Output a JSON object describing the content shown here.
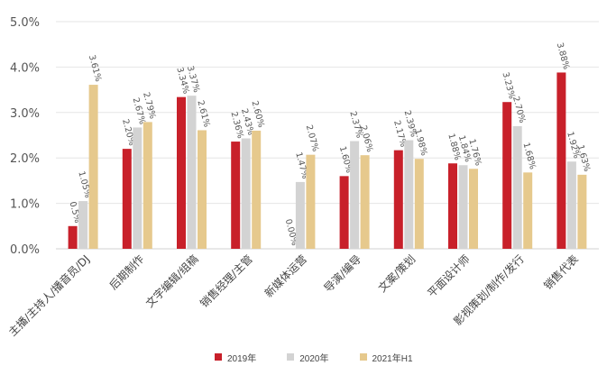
{
  "chart_data": {
    "type": "bar",
    "title": "",
    "xlabel": "",
    "ylabel": "",
    "ylim": [
      0,
      5
    ],
    "yticks": [
      "0.0%",
      "1.0%",
      "2.0%",
      "3.0%",
      "4.0%",
      "5.0%"
    ],
    "grid": true,
    "legend_position": "bottom",
    "categories": [
      "主播/主持人/播音员/DJ",
      "后期制作",
      "文字编辑/组稿",
      "销售经理/主管",
      "新媒体运营",
      "导演/编导",
      "文案/策划",
      "平面设计师",
      "影视策划/制作/发行",
      "销售代表"
    ],
    "series": [
      {
        "name": "2019年",
        "color": "#c8202a",
        "values": [
          0.5,
          2.2,
          3.34,
          2.36,
          0.0,
          1.6,
          2.17,
          1.88,
          3.23,
          3.88
        ],
        "labels": [
          "0.5%",
          "2.20%",
          "3.34%",
          "2.36%",
          "0.00%",
          "1.60%",
          "2.17%",
          "1.88%",
          "3.23%",
          "3.88%"
        ]
      },
      {
        "name": "2020年",
        "color": "#d3d3d3",
        "values": [
          1.05,
          2.67,
          3.37,
          2.43,
          1.47,
          2.37,
          2.39,
          1.84,
          2.7,
          1.92
        ],
        "labels": [
          "1.05%",
          "2.67%",
          "3.37%",
          "2.43%",
          "1.47%",
          "2.37%",
          "2.39%",
          "1.84%",
          "2.70%",
          "1.92%"
        ]
      },
      {
        "name": "2021年H1",
        "color": "#e6c98d",
        "values": [
          3.61,
          2.79,
          2.61,
          2.6,
          2.07,
          2.06,
          1.98,
          1.76,
          1.68,
          1.63
        ],
        "labels": [
          "3.61%",
          "2.79%",
          "2.61%",
          "2.60%",
          "2.07%",
          "2.06%",
          "1.98%",
          "1.76%",
          "1.68%",
          "1.63%"
        ]
      }
    ]
  }
}
